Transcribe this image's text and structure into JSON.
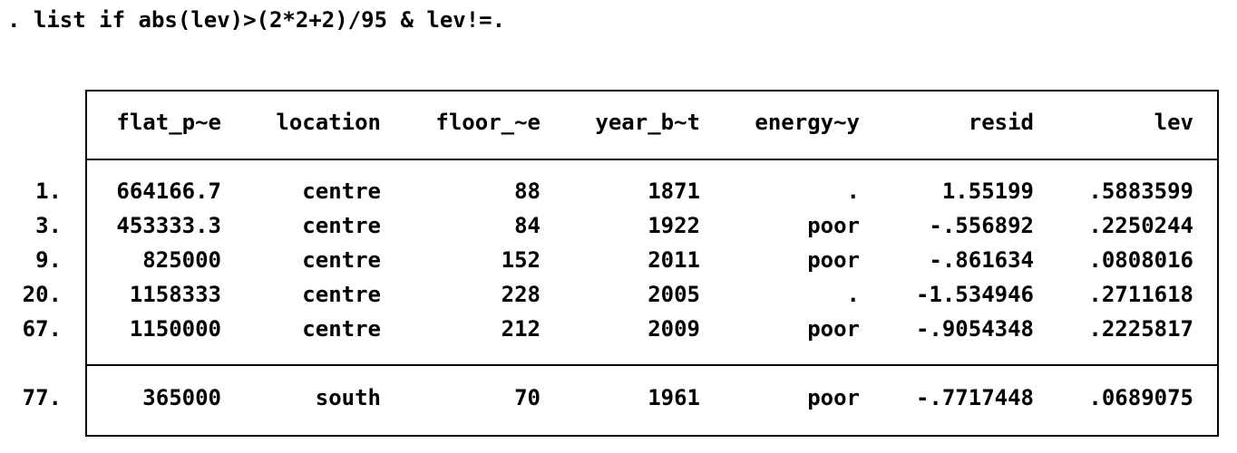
{
  "command": ". list if abs(lev)>(2*2+2)/95 & lev!=.",
  "table": {
    "columns": [
      "flat_p~e",
      "location",
      "floor_~e",
      "year_b~t",
      "energy~y",
      "resid",
      "lev"
    ],
    "rows": [
      {
        "n": "1.",
        "cells": [
          "664166.7",
          "centre",
          "88",
          "1871",
          ".",
          "1.55199",
          ".5883599"
        ]
      },
      {
        "n": "3.",
        "cells": [
          "453333.3",
          "centre",
          "84",
          "1922",
          "poor",
          "-.556892",
          ".2250244"
        ]
      },
      {
        "n": "9.",
        "cells": [
          "825000",
          "centre",
          "152",
          "2011",
          "poor",
          "-.861634",
          ".0808016"
        ]
      },
      {
        "n": "20.",
        "cells": [
          "1158333",
          "centre",
          "228",
          "2005",
          ".",
          "-1.534946",
          ".2711618"
        ]
      },
      {
        "n": "67.",
        "cells": [
          "1150000",
          "centre",
          "212",
          "2009",
          "poor",
          "-.9054348",
          ".2225817"
        ]
      },
      {
        "n": "77.",
        "cells": [
          "365000",
          "south",
          "70",
          "1961",
          "poor",
          "-.7717448",
          ".0689075"
        ]
      }
    ]
  }
}
